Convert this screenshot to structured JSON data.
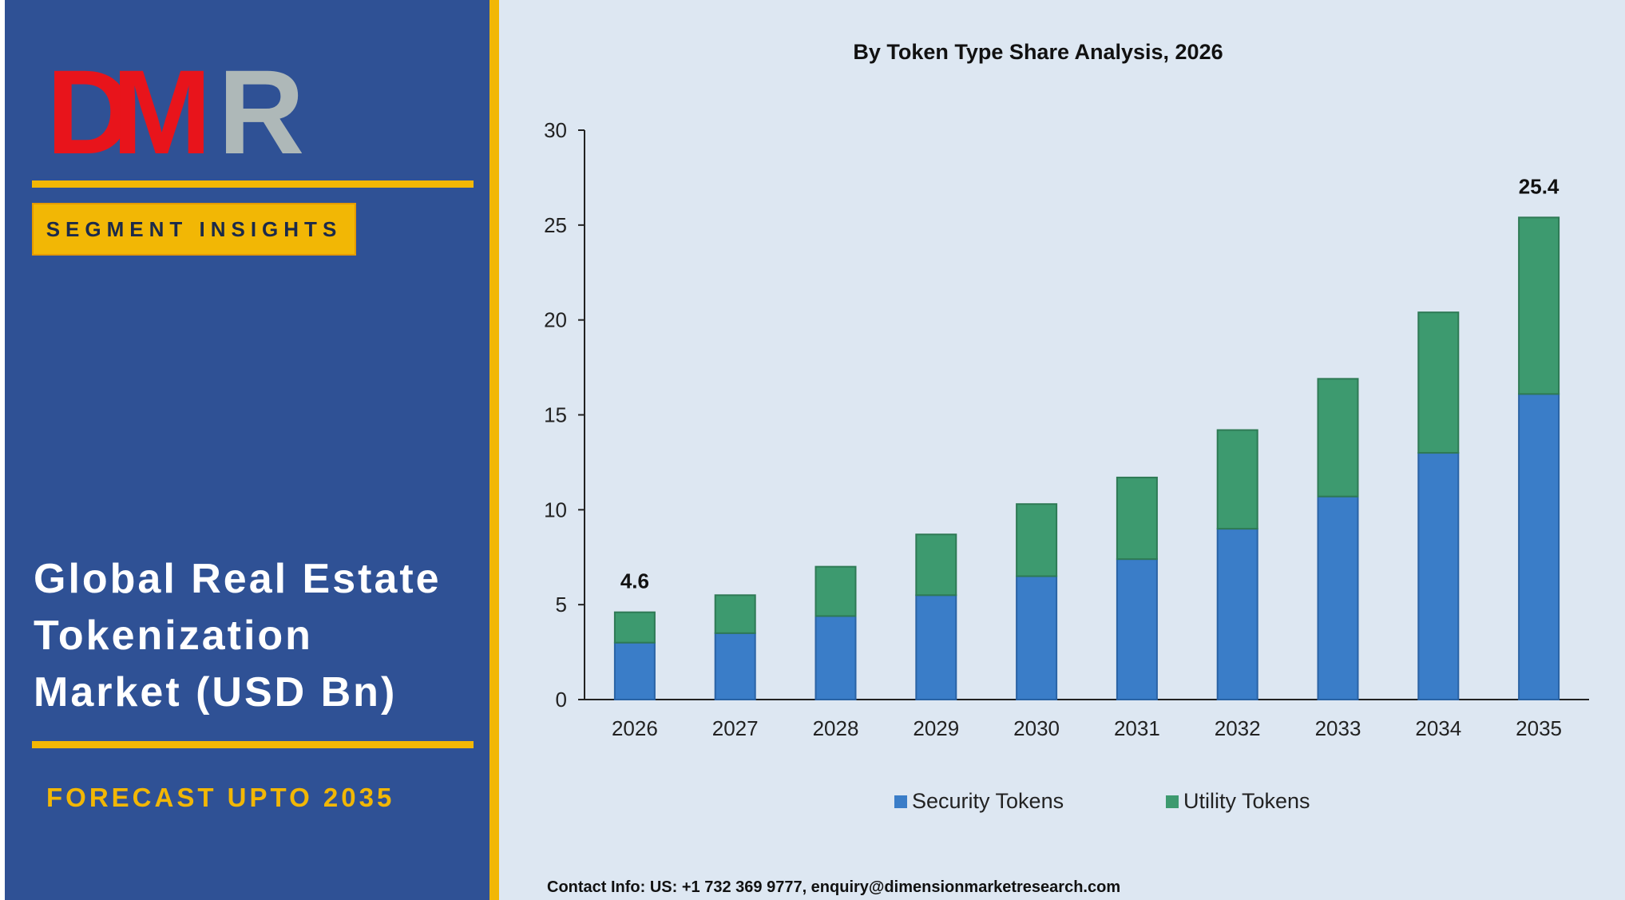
{
  "brand": {
    "logo_text": "DMR",
    "logo_letters": [
      "D",
      "M",
      "R"
    ]
  },
  "left_panel": {
    "badge": "SEGMENT INSIGHTS",
    "title_lines": [
      "Global Real Estate",
      "Tokenization",
      "Market (USD Bn)"
    ],
    "forecast": "FORECAST UPTO 2035"
  },
  "colors": {
    "panel_blue": "#2f5195",
    "gold": "#f2b705",
    "background": "#dde7f2",
    "security": "#3a7dc8",
    "utility": "#3d9a6f",
    "logo_red": "#e8141b",
    "logo_gray": "#aeb8b8"
  },
  "chart_data": {
    "type": "bar",
    "stacked": true,
    "title": "By Token Type Share Analysis, 2026",
    "xlabel": "",
    "ylabel": "",
    "ylim": [
      0,
      30
    ],
    "yticks": [
      "0",
      "5",
      "10",
      "15",
      "20",
      "25",
      "30"
    ],
    "categories": [
      "2026",
      "2027",
      "2028",
      "2029",
      "2030",
      "2031",
      "2032",
      "2033",
      "2034",
      "2035"
    ],
    "series": [
      {
        "name": "Security Tokens",
        "color": "#3a7dc8",
        "values": [
          3.0,
          3.5,
          4.4,
          5.5,
          6.5,
          7.4,
          9.0,
          10.7,
          13.0,
          16.1
        ]
      },
      {
        "name": "Utility Tokens",
        "color": "#3d9a6f",
        "values": [
          1.6,
          2.0,
          2.6,
          3.2,
          3.8,
          4.3,
          5.2,
          6.2,
          7.4,
          9.3
        ]
      }
    ],
    "annotations": [
      {
        "category": "2026",
        "text": "4.6"
      },
      {
        "category": "2035",
        "text": "25.4"
      }
    ],
    "grid": false,
    "legend_position": "bottom"
  },
  "footer": {
    "contact": "Contact Info: US: +1 732 369 9777, enquiry@dimensionmarketresearch.com"
  }
}
